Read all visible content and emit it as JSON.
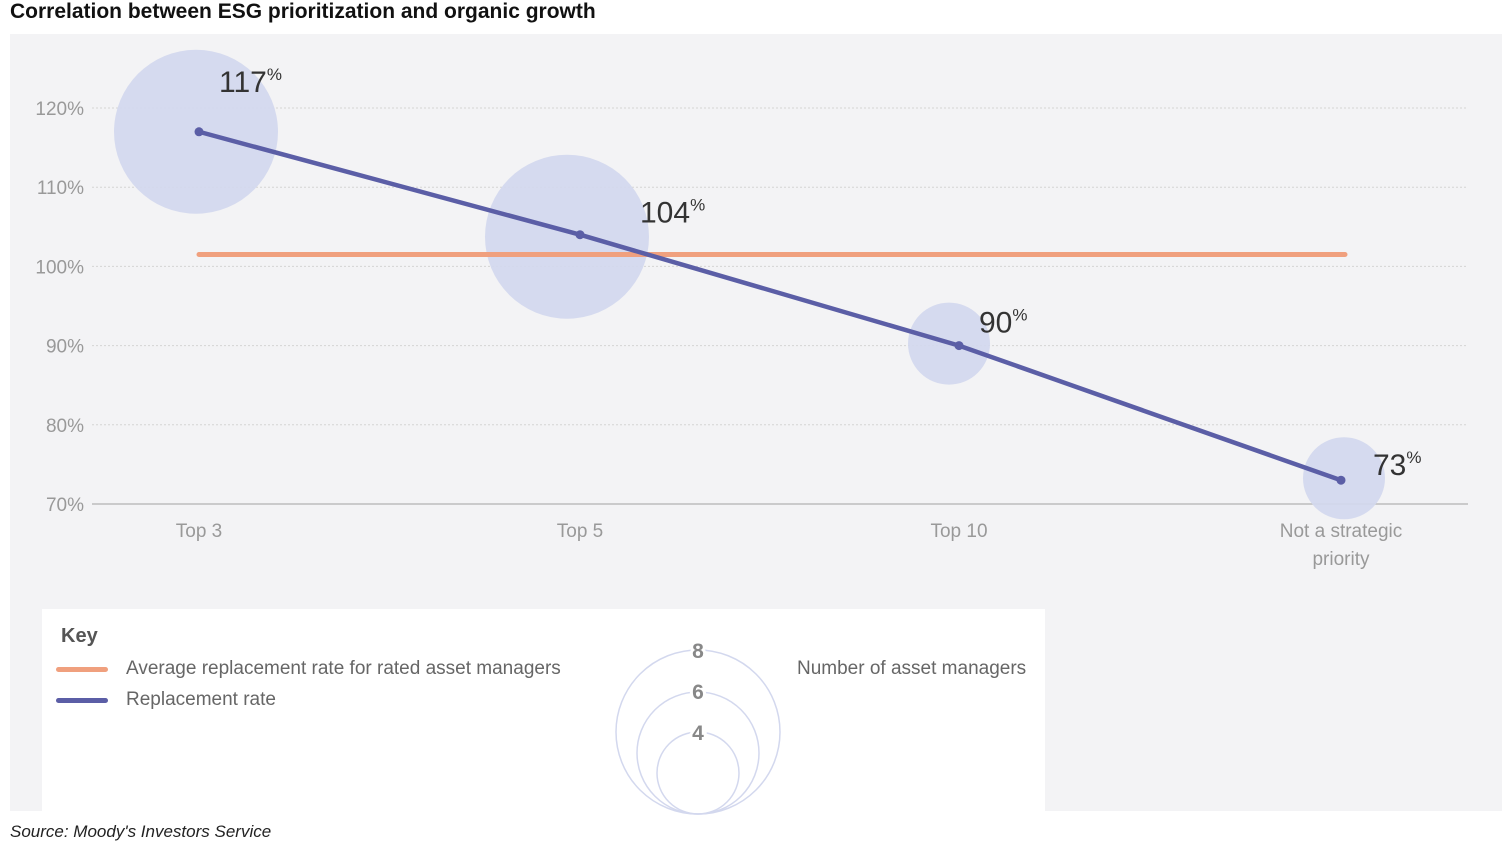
{
  "title": "Correlation between ESG prioritization and organic growth",
  "source": "Source: Moody's Investors Service",
  "colors": {
    "replacement_line": "#5b5ea6",
    "average_line": "#f0a07e",
    "bubble": "#d3d8ee",
    "panel": "#f3f3f5"
  },
  "chart_data": {
    "type": "line",
    "categories": [
      "Top 3",
      "Top 5",
      "Top 10",
      "Not a strategic priority"
    ],
    "category_lines": [
      [
        "Top 3"
      ],
      [
        "Top 5"
      ],
      [
        "Top 10"
      ],
      [
        "Not a strategic",
        "priority"
      ]
    ],
    "series": [
      {
        "name": "Replacement rate",
        "values": [
          117,
          104,
          90,
          73
        ],
        "labels": [
          "117",
          "104",
          "90",
          "73"
        ],
        "label_suffix": "%",
        "bubble_size": [
          8,
          8,
          4,
          4
        ]
      },
      {
        "name": "Average replacement rate for rated asset managers",
        "values": [
          101.5,
          101.5,
          101.5,
          101.5
        ]
      }
    ],
    "yticks": [
      70,
      80,
      90,
      100,
      110,
      120
    ],
    "ytick_labels": [
      "70%",
      "80%",
      "90%",
      "100%",
      "110%",
      "120%"
    ],
    "ylim": [
      70,
      124
    ],
    "grid": true,
    "xlabel": "",
    "ylabel": ""
  },
  "key": {
    "title": "Key",
    "items": [
      {
        "label": "Average replacement rate for rated asset managers"
      },
      {
        "label": "Replacement rate"
      }
    ],
    "size_legend": {
      "label": "Number of asset managers",
      "values": [
        "8",
        "6",
        "4"
      ]
    }
  }
}
